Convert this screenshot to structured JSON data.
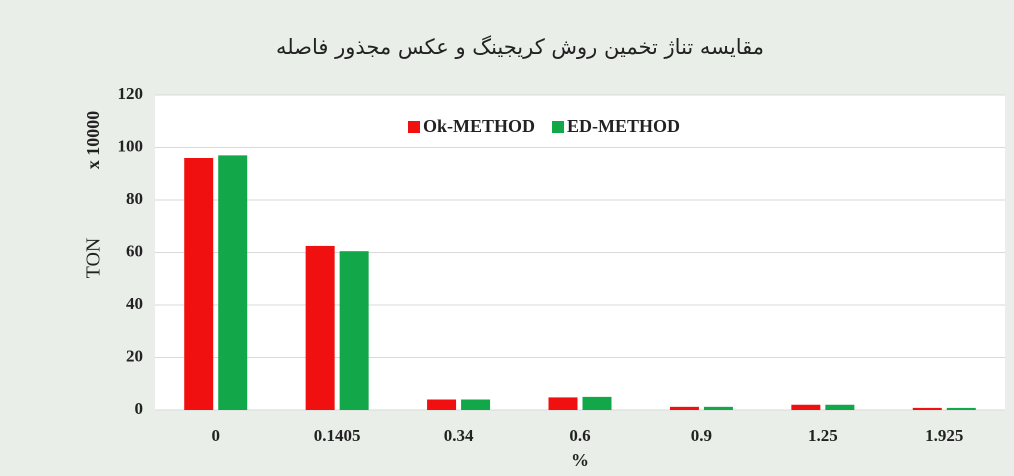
{
  "chart_data": {
    "type": "bar",
    "title": "مقایسه تناژ تخمین روش کریجینگ و عکس مجذور فاصله",
    "y_label": "TON",
    "y_unit": "x 10000",
    "x_label": "%",
    "categories": [
      "0",
      "0.1405",
      "0.34",
      "0.6",
      "0.9",
      "1.25",
      "1.925"
    ],
    "series": [
      {
        "name": "Ok-METHOD",
        "color": "#f01010",
        "values": [
          96,
          62.5,
          4,
          4.8,
          1.2,
          2,
          0.8
        ]
      },
      {
        "name": "ED-METHOD",
        "color": "#12a84a",
        "values": [
          97,
          60.5,
          4,
          5,
          1.2,
          2,
          0.8
        ]
      }
    ],
    "ylim": [
      0,
      120
    ],
    "yticks": [
      0,
      20,
      40,
      60,
      80,
      100,
      120
    ],
    "grid": true,
    "legend": "top"
  }
}
